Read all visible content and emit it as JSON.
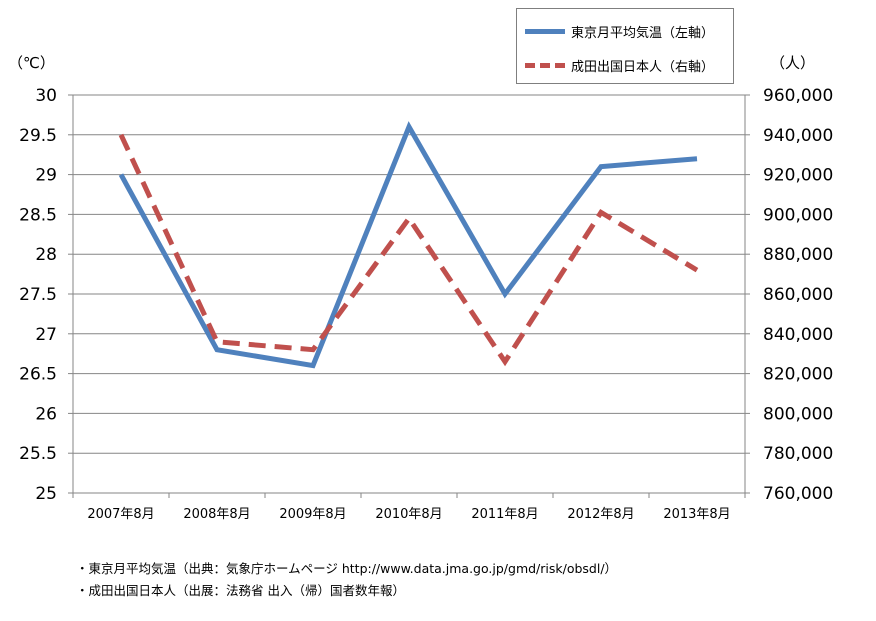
{
  "chart_data": {
    "type": "line",
    "categories": [
      "2007年8月",
      "2008年8月",
      "2009年8月",
      "2010年8月",
      "2011年8月",
      "2012年8月",
      "2013年8月"
    ],
    "series": [
      {
        "name": "東京月平均気温（左軸）",
        "axis": "left",
        "color": "#4f81bd",
        "style": "solid",
        "values": [
          29.0,
          26.8,
          26.6,
          29.6,
          27.5,
          29.1,
          29.2
        ]
      },
      {
        "name": "成田出国日本人（右軸）",
        "axis": "right",
        "color": "#c0504d",
        "style": "dashed",
        "values": [
          940000,
          836000,
          832000,
          898000,
          826000,
          901000,
          872000
        ]
      }
    ],
    "y_left": {
      "unit": "（℃）",
      "ylim": [
        25,
        30
      ],
      "ticks": [
        "25",
        "25.5",
        "26",
        "26.5",
        "27",
        "27.5",
        "28",
        "28.5",
        "29",
        "29.5",
        "30"
      ]
    },
    "y_right": {
      "unit": "（人）",
      "ylim": [
        760000,
        960000
      ],
      "ticks": [
        "760,000",
        "780,000",
        "800,000",
        "820,000",
        "840,000",
        "860,000",
        "880,000",
        "900,000",
        "920,000",
        "940,000",
        "960,000"
      ]
    },
    "grid": true,
    "legend_position": "top-right"
  },
  "notes": [
    "・東京月平均気温（出典：気象庁ホームページ  http://www.data.jma.go.jp/gmd/risk/obsdl/）",
    "・成田出国日本人（出展：法務省 出入（帰）国者数年報）"
  ]
}
